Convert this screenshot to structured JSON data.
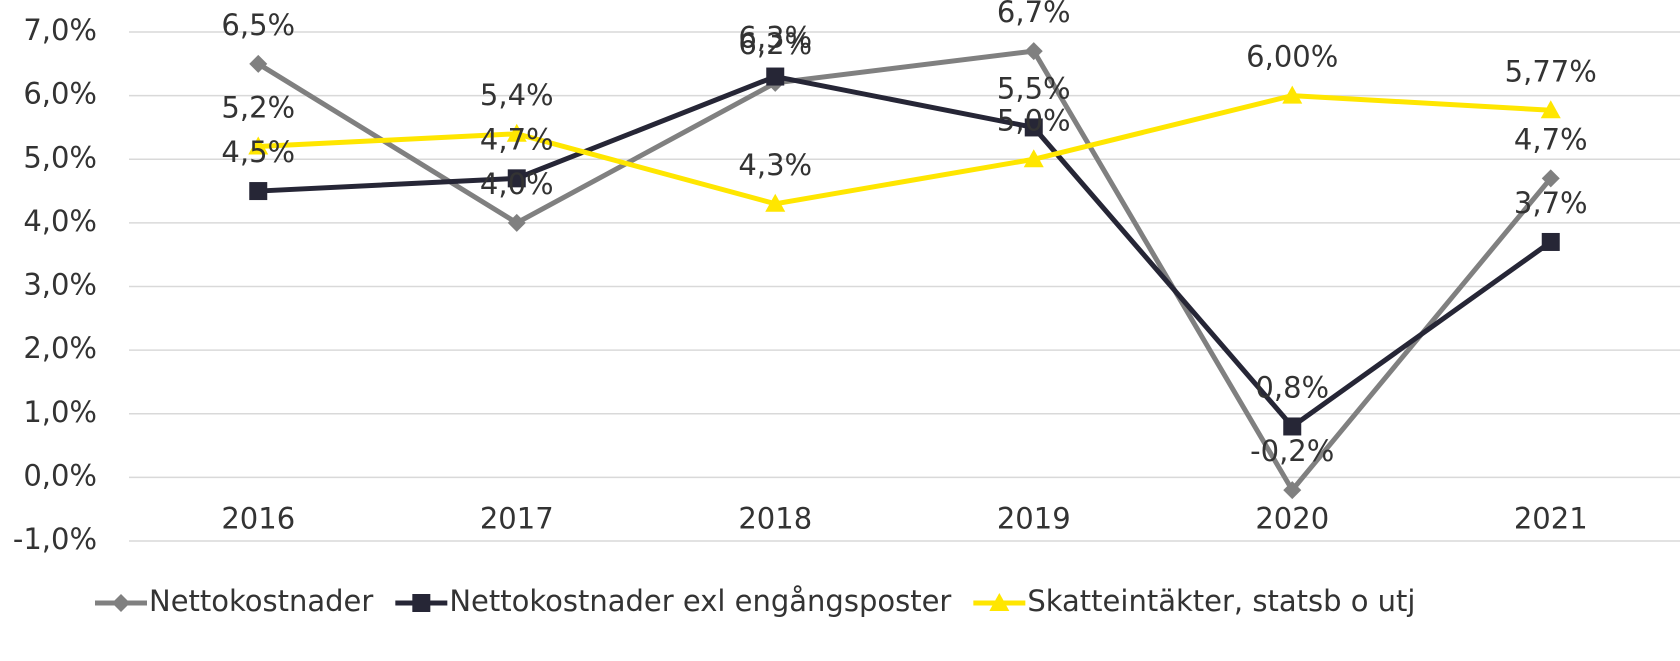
{
  "chart_data": {
    "type": "line",
    "categories": [
      "2016",
      "2017",
      "2018",
      "2019",
      "2020",
      "2021"
    ],
    "series": [
      {
        "name": "Nettokostnader",
        "color": "#808080",
        "marker": "diamond",
        "values": [
          6.5,
          4.0,
          6.2,
          6.7,
          -0.2,
          4.7
        ],
        "value_labels": [
          "6,5%",
          "4,0%",
          "6,2%",
          "6,7%",
          "-0,2%",
          "4,7%"
        ]
      },
      {
        "name": "Nettokostnader exl engångsposter",
        "color": "#262636",
        "marker": "square",
        "values": [
          4.5,
          4.7,
          6.3,
          5.5,
          0.8,
          3.7
        ],
        "value_labels": [
          "4,5%",
          "4,7%",
          "6,3%",
          "5,5%",
          "0,8%",
          "3,7%"
        ]
      },
      {
        "name": "Skatteintäkter, statsb o utj",
        "color": "#FFE600",
        "marker": "triangle",
        "values": [
          5.2,
          5.4,
          4.3,
          5.0,
          6.0,
          5.77
        ],
        "value_labels": [
          "5,2%",
          "5,4%",
          "4,3%",
          "5,0%",
          "6,00%",
          "5,77%"
        ]
      }
    ],
    "ylim": [
      -1,
      7
    ],
    "yticks": [
      {
        "value": -1,
        "label": "-1,0%"
      },
      {
        "value": 0,
        "label": "0,0%"
      },
      {
        "value": 1,
        "label": "1,0%"
      },
      {
        "value": 2,
        "label": "2,0%"
      },
      {
        "value": 3,
        "label": "3,0%"
      },
      {
        "value": 4,
        "label": "4,0%"
      },
      {
        "value": 5,
        "label": "5,0%"
      },
      {
        "value": 6,
        "label": "6,0%"
      },
      {
        "value": 7,
        "label": "7,0%"
      }
    ],
    "grid": true,
    "legend": "bottom"
  }
}
